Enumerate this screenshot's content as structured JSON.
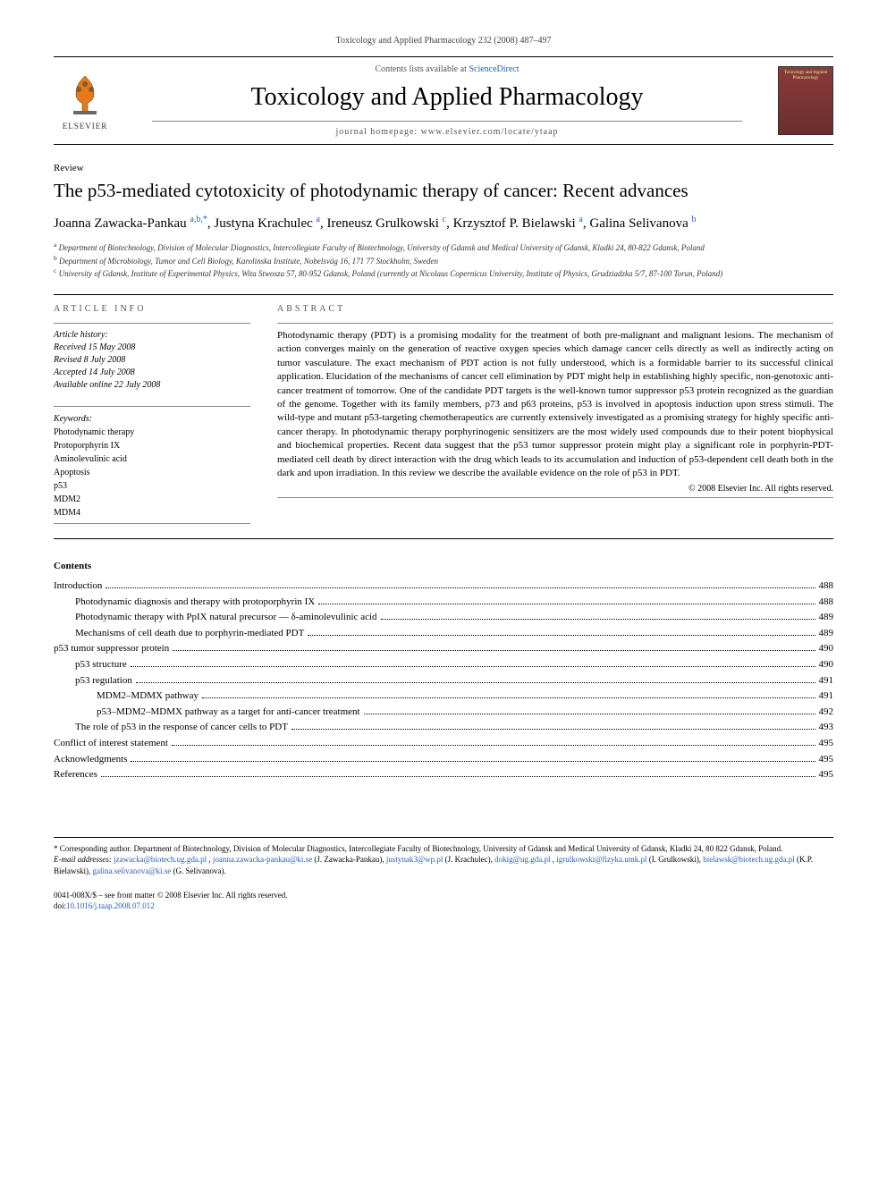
{
  "citation": "Toxicology and Applied Pharmacology 232 (2008) 487–497",
  "header": {
    "contents_prefix": "Contents lists available at ",
    "contents_link": "ScienceDirect",
    "journal": "Toxicology and Applied Pharmacology",
    "homepage_label": "journal homepage: www.elsevier.com/locate/ytaap",
    "elsevier_label": "ELSEVIER",
    "cover_label": "Toxicology and Applied Pharmacology"
  },
  "article_type": "Review",
  "title": "The p53-mediated cytotoxicity of photodynamic therapy of cancer: Recent advances",
  "authors": [
    {
      "name": "Joanna Zawacka-Pankau",
      "affil": "a,b,",
      "corr": "*"
    },
    {
      "name": "Justyna Krachulec",
      "affil": "a",
      "corr": ""
    },
    {
      "name": "Ireneusz Grulkowski",
      "affil": "c",
      "corr": ""
    },
    {
      "name": "Krzysztof P. Bielawski",
      "affil": "a",
      "corr": ""
    },
    {
      "name": "Galina Selivanova",
      "affil": "b",
      "corr": ""
    }
  ],
  "affiliations": {
    "a": "Department of Biotechnology, Division of Molecular Diagnostics, Intercollegiate Faculty of Biotechnology, University of Gdansk and Medical University of Gdansk, Kladki 24, 80-822 Gdansk, Poland",
    "b": "Department of Microbiology, Tumor and Cell Biology, Karolinska Institute, Nobelsväg 16, 171 77 Stockholm, Sweden",
    "c": "University of Gdansk, Institute of Experimental Physics, Wita Stwosza 57, 80-952 Gdansk, Poland (currently at Nicolaus Copernicus University, Institute of Physics, Grudziadzka 5/7, 87-100 Torun, Poland)"
  },
  "article_info": {
    "heading": "ARTICLE INFO",
    "history_label": "Article history:",
    "received": "Received 15 May 2008",
    "revised": "Revised 8 July 2008",
    "accepted": "Accepted 14 July 2008",
    "available": "Available online 22 July 2008",
    "keywords_label": "Keywords:",
    "keywords": [
      "Photodynamic therapy",
      "Protoporphyrin IX",
      "Aminolevulinic acid",
      "Apoptosis",
      "p53",
      "MDM2",
      "MDM4"
    ]
  },
  "abstract": {
    "heading": "ABSTRACT",
    "text": "Photodynamic therapy (PDT) is a promising modality for the treatment of both pre-malignant and malignant lesions. The mechanism of action converges mainly on the generation of reactive oxygen species which damage cancer cells directly as well as indirectly acting on tumor vasculature. The exact mechanism of PDT action is not fully understood, which is a formidable barrier to its successful clinical application. Elucidation of the mechanisms of cancer cell elimination by PDT might help in establishing highly specific, non-genotoxic anti-cancer treatment of tomorrow. One of the candidate PDT targets is the well-known tumor suppressor p53 protein recognized as the guardian of the genome. Together with its family members, p73 and p63 proteins, p53 is involved in apoptosis induction upon stress stimuli. The wild-type and mutant p53-targeting chemotherapeutics are currently extensively investigated as a promising strategy for highly specific anti-cancer therapy. In photodynamic therapy porphyrinogenic sensitizers are the most widely used compounds due to their potent biophysical and biochemical properties. Recent data suggest that the p53 tumor suppressor protein might play a significant role in porphyrin-PDT-mediated cell death by direct interaction with the drug which leads to its accumulation and induction of p53-dependent cell death both in the dark and upon irradiation. In this review we describe the available evidence on the role of p53 in PDT.",
    "copyright": "© 2008 Elsevier Inc. All rights reserved."
  },
  "contents": {
    "heading": "Contents",
    "items": [
      {
        "label": "Introduction",
        "page": "488",
        "indent": 0
      },
      {
        "label": "Photodynamic diagnosis and therapy with protoporphyrin IX",
        "page": "488",
        "indent": 1
      },
      {
        "label": "Photodynamic therapy with PpIX natural precursor — δ-aminolevulinic acid",
        "page": "489",
        "indent": 1
      },
      {
        "label": "Mechanisms of cell death due to porphyrin-mediated PDT",
        "page": "489",
        "indent": 1
      },
      {
        "label": "p53 tumor suppressor protein",
        "page": "490",
        "indent": 0
      },
      {
        "label": "p53 structure",
        "page": "490",
        "indent": 1
      },
      {
        "label": "p53 regulation",
        "page": "491",
        "indent": 1
      },
      {
        "label": "MDM2–MDMX pathway",
        "page": "491",
        "indent": 2
      },
      {
        "label": "p53–MDM2–MDMX pathway as a target for anti-cancer treatment",
        "page": "492",
        "indent": 2
      },
      {
        "label": "The role of p53 in the response of cancer cells to PDT",
        "page": "493",
        "indent": 1
      },
      {
        "label": "Conflict of interest statement",
        "page": "495",
        "indent": 0
      },
      {
        "label": "Acknowledgments",
        "page": "495",
        "indent": 0
      },
      {
        "label": "References",
        "page": "495",
        "indent": 0
      }
    ]
  },
  "footnotes": {
    "corr": "* Corresponding author. Department of Biotechnology, Division of Molecular Diagnostics, Intercollegiate Faculty of Biotechnology, University of Gdansk and Medical University of Gdansk, Kladki 24, 80 822 Gdansk, Poland.",
    "email_label": "E-mail addresses:",
    "emails": [
      {
        "addr": "jzawacka@biotech.ug.gda.pl",
        "who": ""
      },
      {
        "addr": "joanna.zawacka-pankau@ki.se",
        "who": "(J. Zawacka-Pankau)"
      },
      {
        "addr": "justynak3@wp.pl",
        "who": "(J. Krachulec)"
      },
      {
        "addr": "dokig@ug.gda.pl",
        "who": ""
      },
      {
        "addr": "igrulkowski@fizyka.umk.pl",
        "who": "(I. Grulkowski)"
      },
      {
        "addr": "bielawsk@biotech.ug.gda.pl",
        "who": "(K.P. Bielawski)"
      },
      {
        "addr": "galina.selivanova@ki.se",
        "who": "(G. Selivanova)"
      }
    ]
  },
  "footer": {
    "issn": "0041-008X/$ – see front matter © 2008 Elsevier Inc. All rights reserved.",
    "doi_label": "doi:",
    "doi": "10.1016/j.taap.2008.07.012"
  },
  "colors": {
    "link": "#2a5db0",
    "text": "#000000",
    "muted": "#555555",
    "cover_bg": "#8b3a3a"
  }
}
